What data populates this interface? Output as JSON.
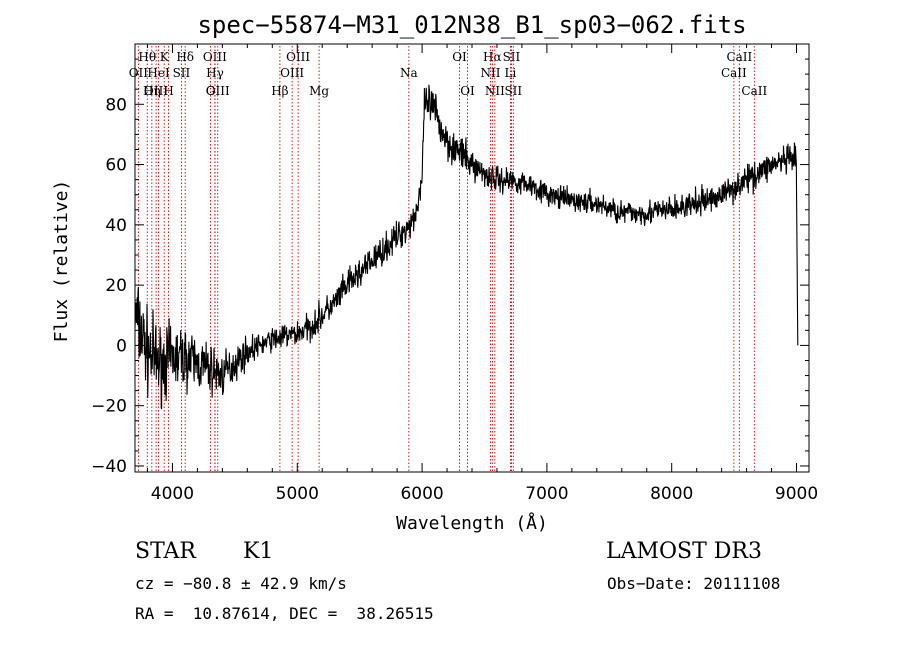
{
  "chart_data": {
    "type": "line",
    "title": "spec−55874−M31_012N38_B1_sp03−062.fits",
    "xlabel": "Wavelength (Å)",
    "ylabel": "Flux (relative)",
    "xlim": [
      3700,
      9100
    ],
    "ylim": [
      -42,
      100
    ],
    "xticks": [
      4000,
      5000,
      6000,
      7000,
      8000,
      9000
    ],
    "yticks": [
      -40,
      -20,
      0,
      20,
      40,
      60,
      80
    ],
    "ytick_labels": [
      "−40",
      "−20",
      "0",
      "20",
      "40",
      "60",
      "80"
    ],
    "grid": false,
    "spectrum_anchors": {
      "x": [
        3700,
        3800,
        3900,
        4000,
        4100,
        4200,
        4300,
        4400,
        4500,
        4600,
        4700,
        4800,
        4900,
        5000,
        5100,
        5200,
        5300,
        5400,
        5500,
        5600,
        5700,
        5800,
        5900,
        5950,
        6000,
        6020,
        6060,
        6100,
        6150,
        6200,
        6250,
        6300,
        6400,
        6500,
        6600,
        6700,
        6800,
        6900,
        7000,
        7200,
        7400,
        7600,
        7800,
        8000,
        8200,
        8400,
        8600,
        8800,
        9000,
        9010
      ],
      "y": [
        10,
        -2,
        -6,
        -4,
        -4,
        -6,
        -8,
        -10,
        -6,
        -2,
        0,
        2,
        3,
        4,
        6,
        10,
        14,
        20,
        24,
        28,
        32,
        36,
        40,
        44,
        55,
        80,
        80,
        78,
        72,
        68,
        66,
        64,
        60,
        57,
        55,
        55,
        54,
        53,
        50,
        48,
        47,
        44,
        44,
        45,
        47,
        50,
        55,
        60,
        62,
        0
      ]
    },
    "noise_amplitude": {
      "x": [
        3700,
        4000,
        4400,
        4700,
        5200,
        6000,
        6100,
        6400,
        7000,
        9000
      ],
      "y": [
        12,
        9,
        6,
        3,
        4,
        4,
        6,
        4,
        3,
        4
      ]
    },
    "lines": [
      {
        "label": "Hθ",
        "x": 3798,
        "row": 1
      },
      {
        "label": "OII",
        "x": 3727,
        "row": 2
      },
      {
        "label": "OIII",
        "x": 3869,
        "row": 3
      },
      {
        "label": "HeI",
        "x": 3889,
        "row": 2
      },
      {
        "label": "Hη",
        "x": 3835,
        "row": 3
      },
      {
        "label": "K",
        "x": 3934,
        "row": 1
      },
      {
        "label": "H",
        "x": 3969,
        "row": 3
      },
      {
        "label": "SII",
        "x": 4072,
        "row": 2
      },
      {
        "label": "Hδ",
        "x": 4102,
        "row": 1
      },
      {
        "label": "OIII",
        "x": 4340,
        "row": 1
      },
      {
        "label": "Hγ",
        "x": 4341,
        "row": 2
      },
      {
        "label": "G",
        "x": 4305,
        "row": 3
      },
      {
        "label": "OIII",
        "x": 4363,
        "row": 4
      },
      {
        "label": "Hβ",
        "x": 4861,
        "row": 3
      },
      {
        "label": "OIII",
        "x": 5007,
        "row": 1
      },
      {
        "label": "OIII",
        "x": 4959,
        "row": 2
      },
      {
        "label": "Mg",
        "x": 5175,
        "row": 3
      },
      {
        "label": "Na",
        "x": 5894,
        "row": 2
      },
      {
        "label": "OI",
        "x": 6300,
        "row": 1
      },
      {
        "label": "OI",
        "x": 6364,
        "row": 3
      },
      {
        "label": "Hα",
        "x": 6563,
        "row": 1
      },
      {
        "label": "NII",
        "x": 6548,
        "row": 2
      },
      {
        "label": "NII",
        "x": 6583,
        "row": 3
      },
      {
        "label": "SII",
        "x": 6716,
        "row": 1
      },
      {
        "label": "Li",
        "x": 6708,
        "row": 2
      },
      {
        "label": "SII",
        "x": 6731,
        "row": 3
      },
      {
        "label": "CaII",
        "x": 8542,
        "row": 1
      },
      {
        "label": "CaII",
        "x": 8498,
        "row": 2
      },
      {
        "label": "CaII",
        "x": 8662,
        "row": 3
      }
    ]
  },
  "info": {
    "object_class": "STAR",
    "subclass": "K1",
    "survey": "LAMOST DR3",
    "cz": "cz = −80.8 ± 42.9 km/s",
    "obs_date": "Obs−Date: 20111108",
    "coords": "RA =  10.87614, DEC =  38.26515"
  },
  "colors": {
    "spectrum": "#000000",
    "line_markers": "#cc0000",
    "axes": "#000000"
  }
}
